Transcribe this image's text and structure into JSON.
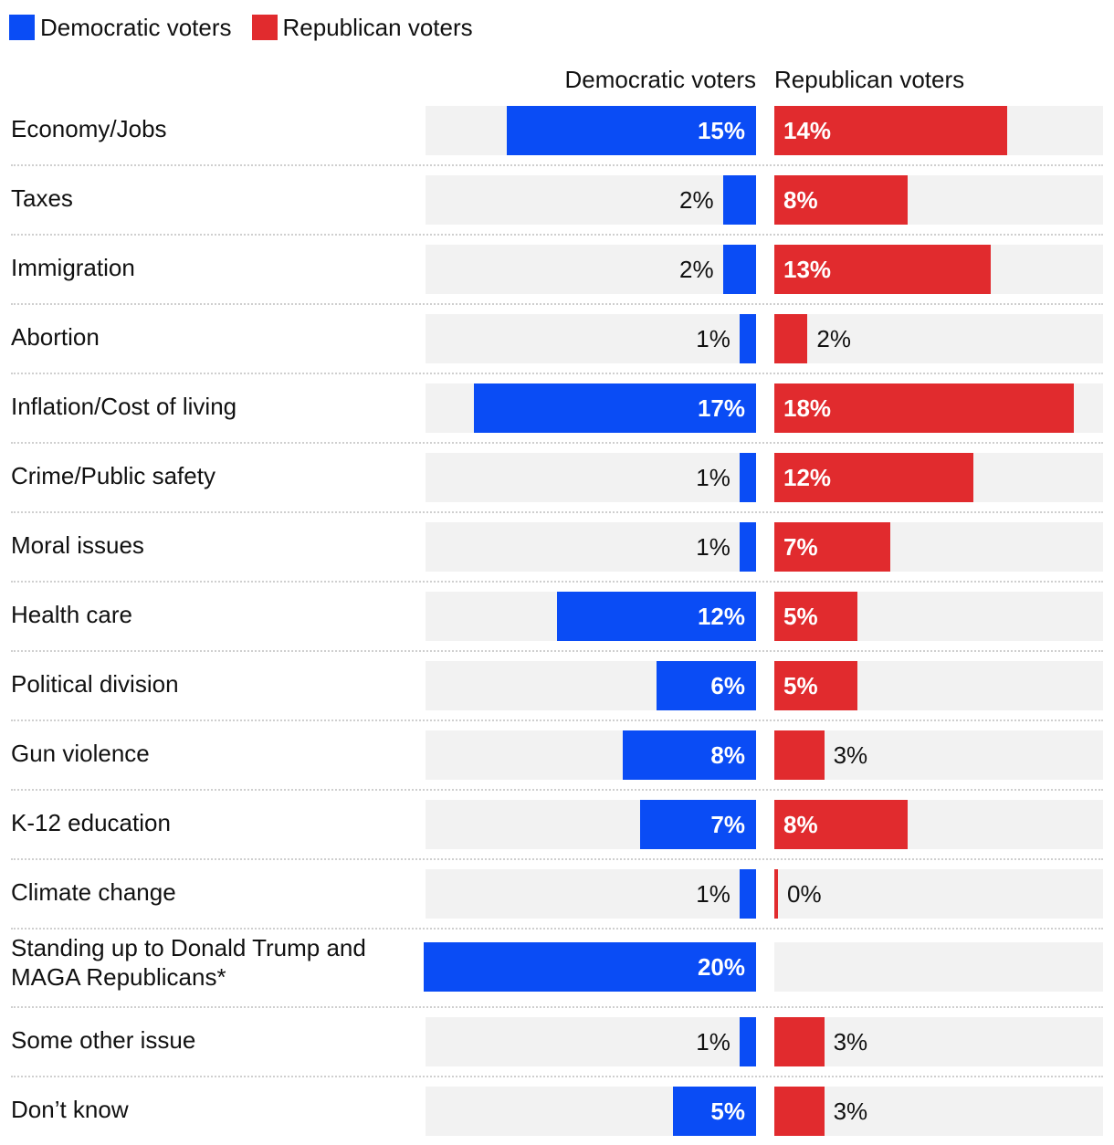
{
  "legend": [
    {
      "label": "Democratic voters",
      "color": "#0a4cf5"
    },
    {
      "label": "Republican voters",
      "color": "#e12b2e"
    }
  ],
  "headers": {
    "dem": "Democratic voters",
    "rep": "Republican voters"
  },
  "colors": {
    "dem": "#0a4cf5",
    "rep": "#e12b2e",
    "track": "#f2f2f2"
  },
  "chart_data": {
    "type": "bar",
    "orientation": "horizontal",
    "layout": "back-to-back",
    "title": "",
    "xlabel": "",
    "ylabel": "",
    "unit": "%",
    "xlim": [
      0,
      20
    ],
    "grid": false,
    "legend_position": "top-left",
    "categories": [
      "Economy/Jobs",
      "Taxes",
      "Immigration",
      "Abortion",
      "Inflation/Cost of living",
      "Crime/Public safety",
      "Moral issues",
      "Health care",
      "Political division",
      "Gun violence",
      "K-12 education",
      "Climate change",
      "Standing up to Donald Trump and MAGA Republicans*",
      "Some other issue",
      "Don’t know"
    ],
    "series": [
      {
        "name": "Democratic voters",
        "color": "#0a4cf5",
        "values": [
          15,
          2,
          2,
          1,
          17,
          1,
          1,
          12,
          6,
          8,
          7,
          1,
          20,
          1,
          5
        ],
        "labels": [
          "15%",
          "2%",
          "2%",
          "1%",
          "17%",
          "1%",
          "1%",
          "12%",
          "6%",
          "8%",
          "7%",
          "1%",
          "20%",
          "1%",
          "5%"
        ]
      },
      {
        "name": "Republican voters",
        "color": "#e12b2e",
        "values": [
          14,
          8,
          13,
          2,
          18,
          12,
          7,
          5,
          5,
          3,
          8,
          0,
          null,
          3,
          3
        ],
        "labels": [
          "14%",
          "8%",
          "13%",
          "2%",
          "18%",
          "12%",
          "7%",
          "5%",
          "5%",
          "3%",
          "8%",
          "0%",
          "",
          "3%",
          "3%"
        ]
      }
    ]
  }
}
